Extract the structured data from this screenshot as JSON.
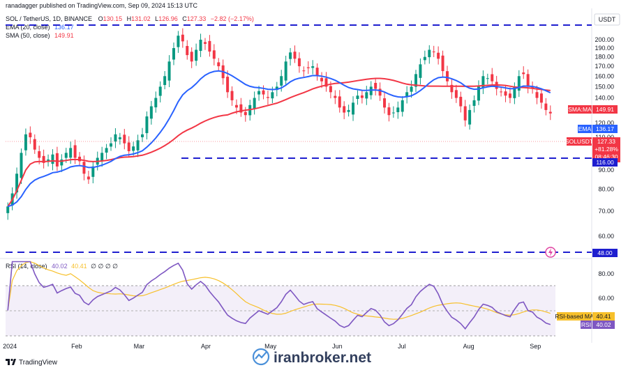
{
  "header": {
    "publisher": "ranadagger published on TradingView.com, Sep 09, 2024 15:13 UTC",
    "symbol": "SOL / TetherUS, 1D, BINANCE",
    "ohlc": {
      "O": "130.15",
      "H": "131.02",
      "L": "126.96",
      "C": "127.33",
      "chg": "−2.82 (−2.17%)"
    },
    "ema_label": "EMA (20, close)",
    "ema_value": "136.17",
    "sma_label": "SMA (50, close)",
    "sma_value": "149.91",
    "rsi_label": "RSI (14, close)",
    "rsi_value": "40.02",
    "rsi_ma_value": "40.41",
    "rsi_extra": "∅ ∅ ∅ ∅"
  },
  "axis": {
    "currency": "USDT",
    "price_ticks": [
      "200.00",
      "190.00",
      "180.00",
      "170.00",
      "160.00",
      "150.00",
      "140.00",
      "130.00",
      "120.00",
      "110.00",
      "100.00",
      "90.00",
      "80.00",
      "70.00",
      "60.00"
    ],
    "rsi_ticks": [
      "80.00",
      "60.00"
    ],
    "months": [
      "2024",
      "Feb",
      "Mar",
      "Apr",
      "May",
      "Jun",
      "Jul",
      "Aug",
      "Sep"
    ]
  },
  "tags": {
    "sma": {
      "label": "SMA:MA",
      "value": "149.91"
    },
    "ema": {
      "label": "EMA",
      "value": "136.17"
    },
    "price": {
      "label": "SOLUSDT",
      "value": "127.33",
      "pct": "+81.28%",
      "timer": "08:46:30"
    },
    "support": "116.00",
    "low_support": "48.00",
    "resistance": "",
    "rsi_ma": {
      "label": "RSI-based MA",
      "value": "40.41"
    },
    "rsi": {
      "label": "RSI",
      "value": "40.02"
    }
  },
  "footer": {
    "brand": "TradingView"
  },
  "watermark": "iranbroker.net",
  "colors": {
    "up": "#089981",
    "down": "#f23645",
    "ema": "#2962ff",
    "sma": "#f23645",
    "rsi": "#7e57c2",
    "rsi_ma": "#f7c02b",
    "level": "#1e1ecf"
  },
  "chart_data": {
    "type": "candlestick",
    "title": "SOL / TetherUS, 1D, BINANCE",
    "levels": [
      208,
      116,
      48
    ],
    "price_axis": {
      "scale": "log",
      "range": [
        45,
        215
      ]
    },
    "rsi_axis": {
      "range": [
        20,
        90
      ],
      "bands": [
        30,
        70
      ]
    },
    "closes": [
      72,
      78,
      88,
      100,
      112,
      110,
      102,
      97,
      94,
      96,
      99,
      92,
      96,
      100,
      103,
      97,
      95,
      88,
      85,
      92,
      97,
      100,
      103,
      106,
      112,
      110,
      106,
      101,
      104,
      108,
      112,
      125,
      133,
      140,
      150,
      160,
      175,
      190,
      205,
      198,
      182,
      175,
      188,
      200,
      195,
      186,
      178,
      170,
      158,
      145,
      138,
      132,
      128,
      126,
      134,
      140,
      146,
      143,
      140,
      145,
      150,
      160,
      175,
      185,
      178,
      170,
      165,
      168,
      170,
      160,
      155,
      150,
      145,
      140,
      132,
      128,
      130,
      136,
      142,
      140,
      145,
      150,
      148,
      142,
      132,
      126,
      128,
      132,
      138,
      145,
      150,
      162,
      172,
      180,
      188,
      186,
      178,
      165,
      155,
      145,
      140,
      133,
      122,
      130,
      138,
      150,
      160,
      158,
      155,
      148,
      145,
      142,
      140,
      150,
      160,
      162,
      150,
      148,
      140,
      136,
      130,
      127.33
    ],
    "ema20_last": 136.17,
    "sma50_last": 149.91,
    "rsi_last": 40.02,
    "rsi_ma_last": 40.41
  }
}
